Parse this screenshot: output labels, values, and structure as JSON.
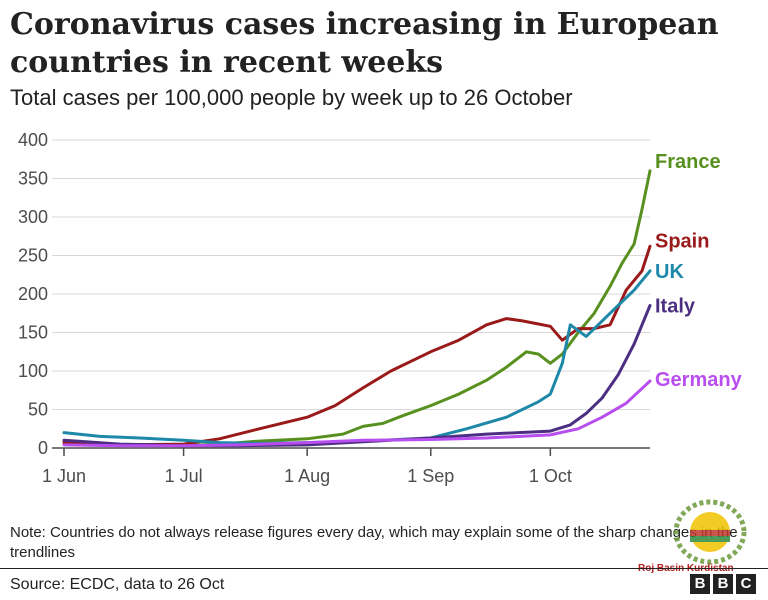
{
  "title": "Coronavirus cases increasing in European countries in recent weeks",
  "subtitle": "Total cases per 100,000 people by week up to 26 October",
  "note": "Note: Countries do not always release figures every day, which may explain some of the sharp changes in the trendlines",
  "source": "Source: ECDC, data to 26 Oct",
  "logo": {
    "letters": [
      "B",
      "B",
      "C"
    ]
  },
  "watermark_text": "Roj Basin Kurdistan",
  "colors": {
    "France": "#58901f",
    "Spain": "#9a1a1a",
    "UK": "#1d88a8",
    "Italy": "#4c2f82",
    "Germany": "#b94ef0",
    "grid": "#d9d9d9",
    "axis": "#4d4d4d"
  },
  "chart_data": {
    "type": "line",
    "title": "Coronavirus cases increasing in European countries in recent weeks",
    "subtitle": "Total cases per 100,000 people by week up to 26 October",
    "xlabel": "",
    "ylabel": "",
    "ylim": [
      0,
      400
    ],
    "yticks": [
      0,
      50,
      100,
      150,
      200,
      250,
      300,
      350,
      400
    ],
    "xticks": [
      {
        "label": "1 Jun",
        "date": "2020-06-01"
      },
      {
        "label": "1 Jul",
        "date": "2020-07-01"
      },
      {
        "label": "1 Aug",
        "date": "2020-08-01"
      },
      {
        "label": "1 Sep",
        "date": "2020-09-01"
      },
      {
        "label": "1 Oct",
        "date": "2020-10-01"
      }
    ],
    "xlim": [
      "2020-06-01",
      "2020-10-26"
    ],
    "grid": true,
    "legend": "direct labels at line ends",
    "series": [
      {
        "name": "France",
        "x": [
          "2020-06-01",
          "2020-06-10",
          "2020-06-20",
          "2020-07-01",
          "2020-07-10",
          "2020-07-20",
          "2020-08-01",
          "2020-08-10",
          "2020-08-15",
          "2020-08-20",
          "2020-08-25",
          "2020-09-01",
          "2020-09-08",
          "2020-09-15",
          "2020-09-20",
          "2020-09-25",
          "2020-09-28",
          "2020-10-01",
          "2020-10-04",
          "2020-10-08",
          "2020-10-12",
          "2020-10-16",
          "2020-10-19",
          "2020-10-22",
          "2020-10-24",
          "2020-10-26"
        ],
        "y": [
          9,
          5,
          4,
          3,
          5,
          9,
          12,
          18,
          28,
          32,
          42,
          55,
          70,
          88,
          105,
          125,
          122,
          110,
          122,
          150,
          175,
          210,
          240,
          265,
          310,
          360
        ]
      },
      {
        "name": "Spain",
        "x": [
          "2020-06-01",
          "2020-06-15",
          "2020-07-01",
          "2020-07-10",
          "2020-07-20",
          "2020-08-01",
          "2020-08-08",
          "2020-08-15",
          "2020-08-22",
          "2020-09-01",
          "2020-09-08",
          "2020-09-15",
          "2020-09-20",
          "2020-09-24",
          "2020-10-01",
          "2020-10-04",
          "2020-10-08",
          "2020-10-12",
          "2020-10-16",
          "2020-10-20",
          "2020-10-24",
          "2020-10-26"
        ],
        "y": [
          7,
          4,
          5,
          12,
          25,
          40,
          55,
          78,
          100,
          125,
          140,
          160,
          168,
          165,
          158,
          140,
          155,
          155,
          160,
          205,
          230,
          262
        ]
      },
      {
        "name": "UK",
        "x": [
          "2020-06-01",
          "2020-06-10",
          "2020-06-20",
          "2020-07-01",
          "2020-07-10",
          "2020-07-20",
          "2020-08-01",
          "2020-08-15",
          "2020-09-01",
          "2020-09-10",
          "2020-09-20",
          "2020-09-28",
          "2020-10-01",
          "2020-10-04",
          "2020-10-06",
          "2020-10-10",
          "2020-10-14",
          "2020-10-18",
          "2020-10-22",
          "2020-10-26"
        ],
        "y": [
          20,
          15,
          13,
          10,
          7,
          6,
          7,
          9,
          13,
          25,
          40,
          60,
          70,
          110,
          160,
          145,
          165,
          185,
          205,
          230
        ]
      },
      {
        "name": "Italy",
        "x": [
          "2020-06-01",
          "2020-06-15",
          "2020-07-01",
          "2020-07-15",
          "2020-08-01",
          "2020-08-15",
          "2020-09-01",
          "2020-09-15",
          "2020-10-01",
          "2020-10-06",
          "2020-10-10",
          "2020-10-14",
          "2020-10-18",
          "2020-10-22",
          "2020-10-26"
        ],
        "y": [
          10,
          5,
          3,
          3,
          4,
          8,
          13,
          18,
          22,
          30,
          45,
          65,
          95,
          135,
          185
        ]
      },
      {
        "name": "Germany",
        "x": [
          "2020-06-01",
          "2020-06-15",
          "2020-07-01",
          "2020-07-15",
          "2020-08-01",
          "2020-08-15",
          "2020-09-01",
          "2020-09-15",
          "2020-10-01",
          "2020-10-08",
          "2020-10-14",
          "2020-10-20",
          "2020-10-26"
        ],
        "y": [
          4,
          3,
          3,
          4,
          7,
          10,
          11,
          13,
          17,
          25,
          40,
          58,
          87
        ]
      }
    ]
  }
}
